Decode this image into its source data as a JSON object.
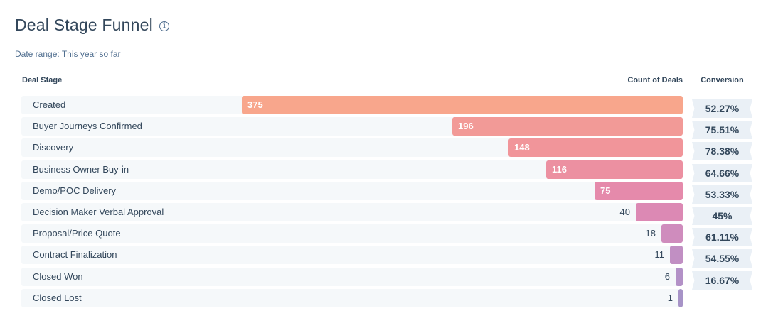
{
  "title": "Deal Stage Funnel",
  "subtitle": "Date range: This year so far",
  "info_icon": "info-icon",
  "headers": {
    "stage": "Deal Stage",
    "count": "Count of Deals",
    "conversion": "Conversion"
  },
  "chart_data": {
    "type": "bar",
    "orientation": "horizontal-funnel",
    "categories": [
      "Created",
      "Buyer Journeys Confirmed",
      "Discovery",
      "Business Owner Buy-in",
      "Demo/POC Delivery",
      "Decision Maker Verbal Approval",
      "Proposal/Price Quote",
      "Contract Finalization",
      "Closed Won",
      "Closed Lost"
    ],
    "values": [
      375,
      196,
      148,
      116,
      75,
      40,
      18,
      11,
      6,
      1
    ],
    "conversions": [
      "52.27%",
      "75.51%",
      "78.38%",
      "64.66%",
      "53.33%",
      "45%",
      "61.11%",
      "54.55%",
      "16.67%"
    ],
    "colors": [
      "#f8a68c",
      "#f29a97",
      "#f1959a",
      "#ec90a1",
      "#e58aab",
      "#dc89b4",
      "#cf8cbd",
      "#c18fc3",
      "#b391c7",
      "#a793c7"
    ],
    "xlim": [
      0,
      375
    ],
    "grid": false
  }
}
